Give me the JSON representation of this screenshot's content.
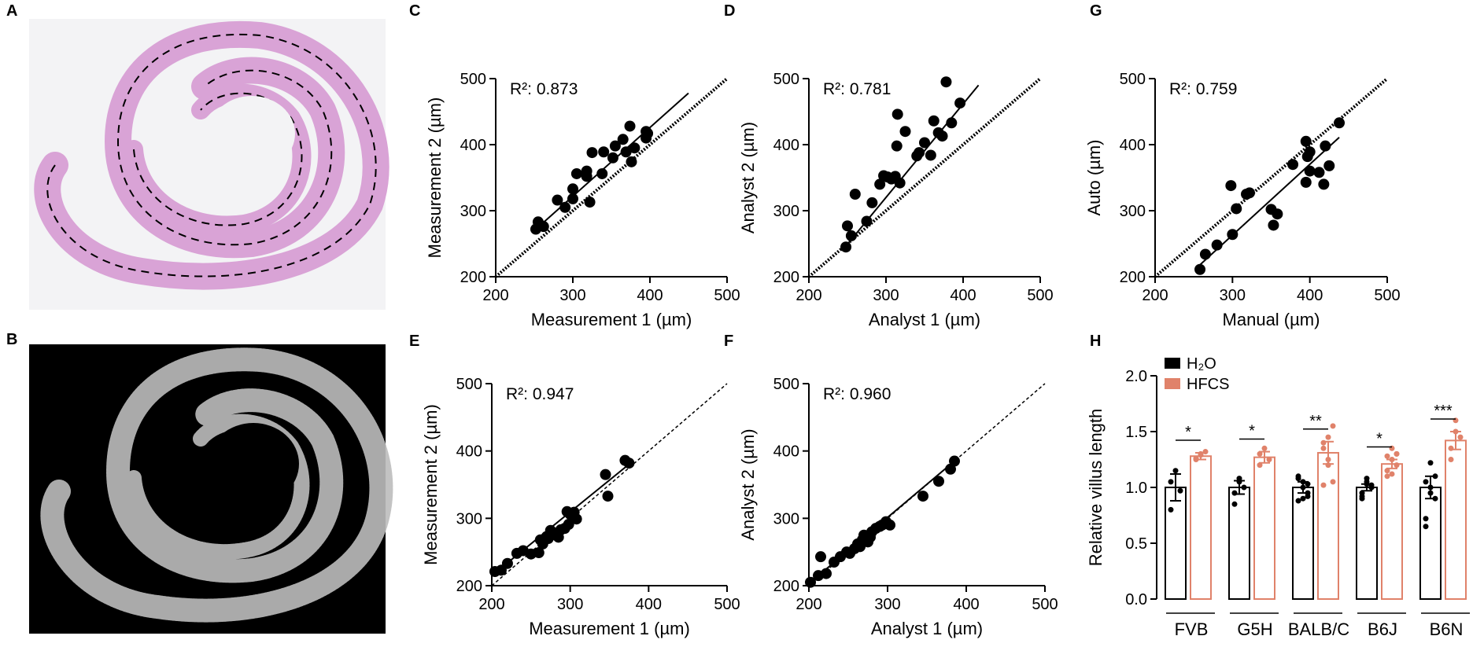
{
  "panel_labels": {
    "A": "A",
    "B": "B",
    "C": "C",
    "D": "D",
    "E": "E",
    "F": "F",
    "G": "G",
    "H": "H"
  },
  "colors": {
    "h2o": "#000000",
    "hfcs": "#e0826a",
    "he_stain": "#d9a3d6",
    "bg_dark": "#000000"
  },
  "chart_data": [
    {
      "id": "C",
      "type": "scatter",
      "xlabel": "Measurement 1 (µm)",
      "ylabel": "Measurement 2 (µm)",
      "xlim": [
        200,
        500
      ],
      "ylim": [
        200,
        500
      ],
      "xticks": [
        "200",
        "300",
        "400",
        "500"
      ],
      "yticks": [
        "200",
        "300",
        "400",
        "500"
      ],
      "annotation": "R²: 0.873",
      "identity_line": "bold-dotted",
      "fit_line": [
        [
          255,
          275
        ],
        [
          450,
          478
        ]
      ],
      "points": [
        [
          252,
          272
        ],
        [
          255,
          283
        ],
        [
          258,
          278
        ],
        [
          262,
          276
        ],
        [
          280,
          316
        ],
        [
          290,
          305
        ],
        [
          300,
          318
        ],
        [
          300,
          333
        ],
        [
          305,
          356
        ],
        [
          318,
          360
        ],
        [
          318,
          352
        ],
        [
          322,
          313
        ],
        [
          325,
          388
        ],
        [
          338,
          356
        ],
        [
          340,
          389
        ],
        [
          352,
          380
        ],
        [
          355,
          398
        ],
        [
          365,
          408
        ],
        [
          369,
          389
        ],
        [
          376,
          374
        ],
        [
          374,
          428
        ],
        [
          380,
          395
        ],
        [
          395,
          410
        ],
        [
          397,
          417
        ],
        [
          395,
          420
        ]
      ]
    },
    {
      "id": "D",
      "type": "scatter",
      "xlabel": "Analyst 1 (µm)",
      "ylabel": "Analyst 2 (µm)",
      "xlim": [
        200,
        500
      ],
      "ylim": [
        200,
        500
      ],
      "xticks": [
        "200",
        "300",
        "400",
        "500"
      ],
      "yticks": [
        "200",
        "300",
        "400",
        "500"
      ],
      "annotation": "R²: 0.781",
      "identity_line": "bold-dotted",
      "fit_line": [
        [
          247,
          245
        ],
        [
          420,
          490
        ]
      ],
      "points": [
        [
          248,
          245
        ],
        [
          250,
          277
        ],
        [
          255,
          262
        ],
        [
          260,
          325
        ],
        [
          275,
          284
        ],
        [
          282,
          312
        ],
        [
          292,
          340
        ],
        [
          297,
          353
        ],
        [
          302,
          351
        ],
        [
          307,
          348
        ],
        [
          312,
          352
        ],
        [
          314,
          398
        ],
        [
          315,
          446
        ],
        [
          318,
          342
        ],
        [
          325,
          420
        ],
        [
          340,
          383
        ],
        [
          343,
          388
        ],
        [
          350,
          403
        ],
        [
          358,
          384
        ],
        [
          362,
          436
        ],
        [
          368,
          418
        ],
        [
          373,
          413
        ],
        [
          378,
          495
        ],
        [
          385,
          433
        ],
        [
          396,
          463
        ]
      ]
    },
    {
      "id": "E",
      "type": "scatter",
      "xlabel": "Measurement 1 (µm)",
      "ylabel": "Measurement 2 (µm)",
      "xlim": [
        200,
        500
      ],
      "ylim": [
        200,
        500
      ],
      "xticks": [
        "200",
        "300",
        "400",
        "500"
      ],
      "yticks": [
        "200",
        "300",
        "400",
        "500"
      ],
      "annotation": "R²: 0.947",
      "identity_line": "thin-dotted",
      "fit_line": [
        [
          200,
          215
        ],
        [
          380,
          385
        ]
      ],
      "points": [
        [
          204,
          221
        ],
        [
          212,
          223
        ],
        [
          220,
          233
        ],
        [
          232,
          248
        ],
        [
          240,
          252
        ],
        [
          250,
          247
        ],
        [
          260,
          249
        ],
        [
          262,
          268
        ],
        [
          265,
          262
        ],
        [
          270,
          273
        ],
        [
          272,
          270
        ],
        [
          275,
          282
        ],
        [
          278,
          276
        ],
        [
          282,
          278
        ],
        [
          285,
          272
        ],
        [
          288,
          283
        ],
        [
          293,
          285
        ],
        [
          296,
          310
        ],
        [
          298,
          291
        ],
        [
          300,
          306
        ],
        [
          305,
          300
        ],
        [
          305,
          309
        ],
        [
          308,
          299
        ],
        [
          345,
          365
        ],
        [
          348,
          333
        ],
        [
          370,
          386
        ],
        [
          375,
          382
        ]
      ]
    },
    {
      "id": "F",
      "type": "scatter",
      "xlabel": "Analyst 1 (µm)",
      "ylabel": "Analyst 2 (µm)",
      "xlim": [
        200,
        500
      ],
      "ylim": [
        200,
        500
      ],
      "xticks": [
        "200",
        "300",
        "400",
        "500"
      ],
      "yticks": [
        "200",
        "300",
        "400",
        "500"
      ],
      "annotation": "R²: 0.960",
      "identity_line": "thin-dotted",
      "fit_line": [
        [
          200,
          203
        ],
        [
          385,
          385
        ]
      ],
      "points": [
        [
          202,
          205
        ],
        [
          212,
          215
        ],
        [
          215,
          243
        ],
        [
          222,
          218
        ],
        [
          232,
          235
        ],
        [
          240,
          243
        ],
        [
          248,
          250
        ],
        [
          252,
          248
        ],
        [
          258,
          255
        ],
        [
          262,
          262
        ],
        [
          265,
          258
        ],
        [
          268,
          268
        ],
        [
          270,
          275
        ],
        [
          272,
          270
        ],
        [
          275,
          265
        ],
        [
          278,
          272
        ],
        [
          280,
          280
        ],
        [
          285,
          285
        ],
        [
          290,
          288
        ],
        [
          293,
          290
        ],
        [
          298,
          295
        ],
        [
          300,
          292
        ],
        [
          303,
          290
        ],
        [
          345,
          333
        ],
        [
          365,
          355
        ],
        [
          380,
          373
        ],
        [
          385,
          385
        ]
      ]
    },
    {
      "id": "G",
      "type": "scatter",
      "xlabel": "Manual (µm)",
      "ylabel": "Auto (µm)",
      "xlim": [
        200,
        500
      ],
      "ylim": [
        200,
        500
      ],
      "xticks": [
        "200",
        "300",
        "400",
        "500"
      ],
      "yticks": [
        "200",
        "300",
        "400",
        "500"
      ],
      "annotation": "R²: 0.759",
      "identity_line": "bold-dotted",
      "fit_line": [
        [
          258,
          218
        ],
        [
          438,
          411
        ]
      ],
      "points": [
        [
          258,
          211
        ],
        [
          265,
          234
        ],
        [
          280,
          248
        ],
        [
          298,
          338
        ],
        [
          300,
          264
        ],
        [
          305,
          303
        ],
        [
          318,
          325
        ],
        [
          322,
          327
        ],
        [
          350,
          302
        ],
        [
          353,
          278
        ],
        [
          358,
          295
        ],
        [
          378,
          370
        ],
        [
          395,
          405
        ],
        [
          395,
          343
        ],
        [
          397,
          382
        ],
        [
          400,
          360
        ],
        [
          400,
          389
        ],
        [
          412,
          358
        ],
        [
          418,
          340
        ],
        [
          420,
          398
        ],
        [
          425,
          368
        ],
        [
          438,
          433
        ]
      ]
    },
    {
      "id": "H",
      "type": "bar",
      "ylabel": "Relative villus length",
      "ylim": [
        0.0,
        2.0
      ],
      "yticks": [
        "0.0",
        "0.5",
        "1.0",
        "1.5",
        "2.0"
      ],
      "categories": [
        "FVB",
        "G5H",
        "BALB/C",
        "B6J",
        "B6N"
      ],
      "series": [
        {
          "name": "H₂O",
          "values": [
            1.0,
            1.0,
            1.0,
            1.0,
            1.0
          ],
          "sem": [
            0.12,
            0.06,
            0.05,
            0.03,
            0.1
          ],
          "points": [
            [
              0.8,
              1.15,
              0.97,
              1.05
            ],
            [
              0.85,
              1.05,
              1.0,
              0.95,
              1.08
            ],
            [
              0.88,
              1.05,
              0.95,
              1.08,
              1.0,
              0.92,
              1.1,
              0.9,
              1.03
            ],
            [
              0.9,
              1.05,
              1.0,
              0.95,
              1.08,
              1.02,
              0.92,
              1.03,
              1.0
            ],
            [
              0.65,
              1.22,
              1.1,
              0.72,
              1.0,
              0.9,
              1.05,
              0.95
            ]
          ]
        },
        {
          "name": "HFCS",
          "values": [
            1.28,
            1.27,
            1.31,
            1.21,
            1.42
          ],
          "sem": [
            0.03,
            0.05,
            0.1,
            0.04,
            0.08
          ],
          "points": [
            [
              1.25,
              1.3,
              1.32,
              1.26,
              1.29
            ],
            [
              1.2,
              1.35,
              1.25,
              1.3
            ],
            [
              1.02,
              1.45,
              1.55,
              1.35,
              1.2,
              1.05,
              1.4,
              1.25
            ],
            [
              1.1,
              1.25,
              1.3,
              1.15,
              1.35,
              1.2,
              1.28,
              1.12,
              1.3
            ],
            [
              1.25,
              1.6,
              1.45,
              1.35,
              1.5
            ]
          ]
        }
      ],
      "significance": [
        "*",
        "*",
        "**",
        "*",
        "***"
      ]
    }
  ]
}
